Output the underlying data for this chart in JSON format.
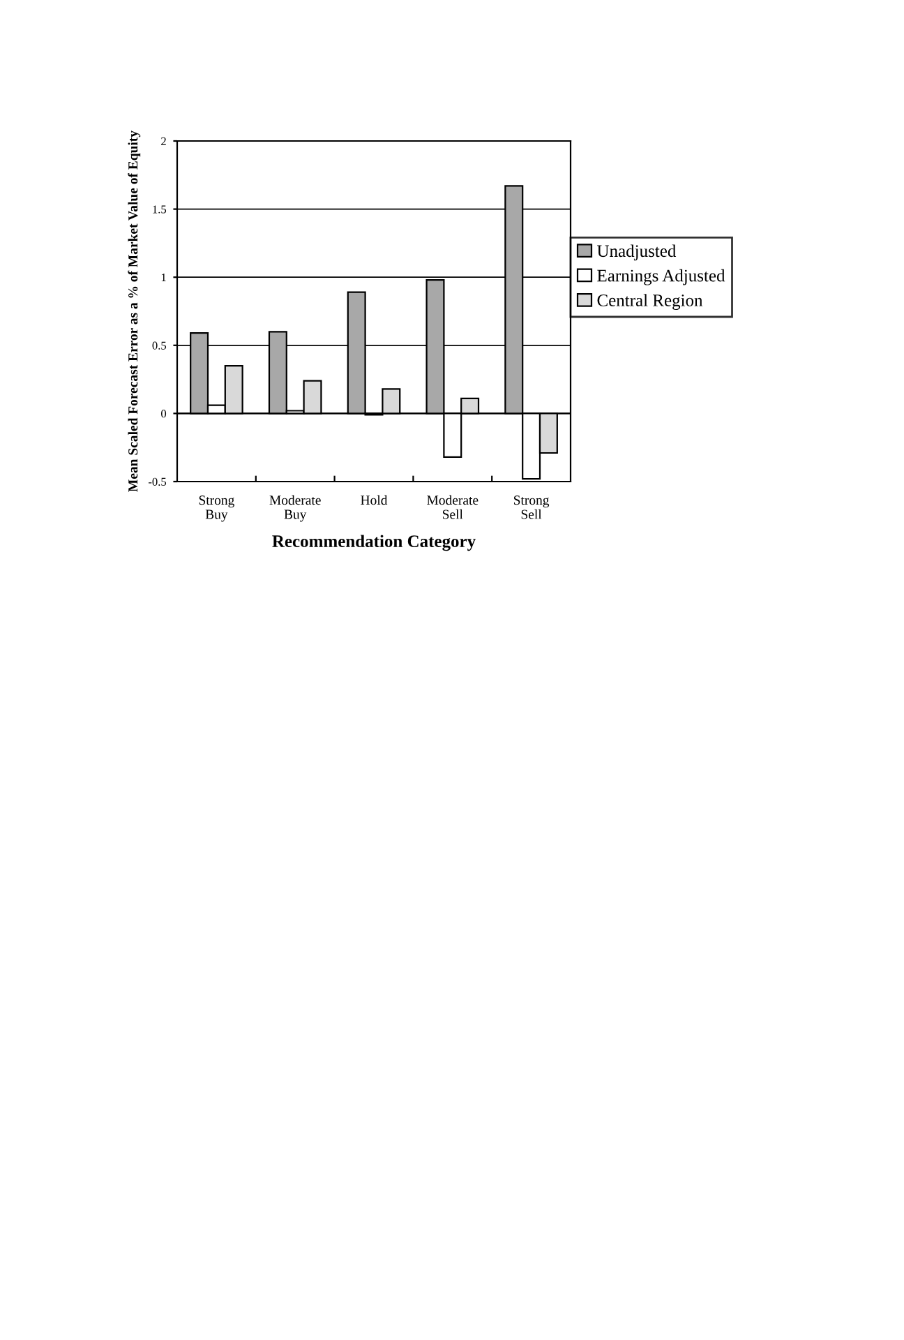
{
  "chart_data": {
    "type": "bar",
    "xlabel": "Recommendation Category",
    "ylabel": "Mean Scaled Forecast Error as a % of Market Value of Equity",
    "categories": [
      "Strong\nBuy",
      "Moderate\nBuy",
      "Hold",
      "Moderate\nSell",
      "Strong\nSell"
    ],
    "series": [
      {
        "name": "Unadjusted",
        "color": "#a8a8a8",
        "values": [
          0.59,
          0.6,
          0.89,
          0.98,
          1.67
        ]
      },
      {
        "name": "Earnings Adjusted",
        "color": "#ffffff",
        "values": [
          0.06,
          0.02,
          -0.01,
          -0.32,
          -0.48
        ]
      },
      {
        "name": "Central Region",
        "color": "#d9d9d9",
        "values": [
          0.35,
          0.24,
          0.18,
          0.11,
          -0.29
        ]
      }
    ],
    "ylim": [
      -0.5,
      2
    ],
    "yticks": [
      -0.5,
      0,
      0.5,
      1,
      1.5,
      2
    ],
    "grid": "y",
    "legend": "right"
  }
}
